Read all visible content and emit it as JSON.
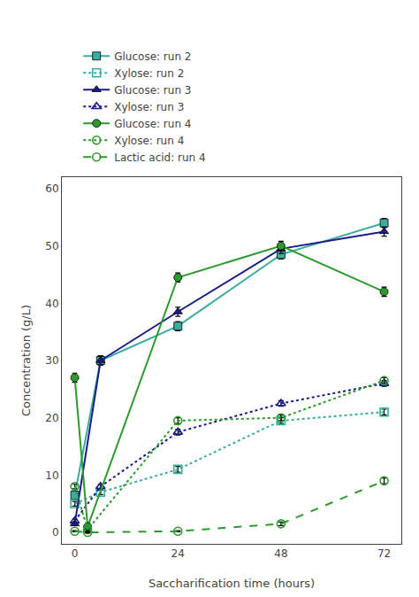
{
  "chart_data": {
    "type": "line",
    "xlabel": "Saccharification time (hours)",
    "ylabel": "Concentration (g/L)",
    "xlim": [
      -3,
      76
    ],
    "ylim": [
      -2,
      62
    ],
    "xticks": [
      0,
      24,
      48,
      72
    ],
    "yticks": [
      0,
      10,
      20,
      30,
      40,
      50,
      60
    ],
    "grid": false,
    "legend": "top",
    "series": [
      {
        "name": "Glucose: run 2",
        "color": "#3aada0",
        "marker": "square",
        "line_style": "solid",
        "x": [
          0,
          6,
          24,
          48,
          72
        ],
        "values": [
          6.5,
          30.0,
          36.0,
          48.5,
          54.0
        ],
        "error": [
          0.5,
          0.8,
          0.8,
          0.8,
          0.8
        ]
      },
      {
        "name": "Xylose: run 2",
        "color": "#3aada0",
        "marker": "square-open",
        "line_style": "dot",
        "x": [
          0,
          6,
          24,
          48,
          72
        ],
        "values": [
          5.0,
          7.0,
          11.0,
          19.5,
          21.0
        ],
        "error": [
          0.4,
          0.4,
          0.5,
          0.5,
          0.5
        ]
      },
      {
        "name": "Glucose: run 3",
        "color": "#1a1a8a",
        "marker": "triangle-up",
        "line_style": "solid",
        "x": [
          0,
          6,
          24,
          48,
          72
        ],
        "values": [
          1.5,
          30.0,
          38.5,
          49.5,
          52.5
        ],
        "error": [
          0.3,
          0.8,
          0.8,
          0.8,
          0.8
        ]
      },
      {
        "name": "Xylose: run 3",
        "color": "#1a1a8a",
        "marker": "triangle-up-open",
        "line_style": "dot",
        "x": [
          0,
          6,
          24,
          48,
          72
        ],
        "values": [
          2.0,
          8.0,
          17.5,
          22.5,
          26.0
        ],
        "error": [
          0.3,
          0.4,
          0.5,
          0.5,
          0.5
        ]
      },
      {
        "name": "Glucose: run 4",
        "color": "#2d9a2d",
        "marker": "circle",
        "line_style": "solid",
        "x": [
          0,
          3,
          24,
          48,
          72
        ],
        "values": [
          27.0,
          1.0,
          44.5,
          50.0,
          42.0
        ],
        "error": [
          0.8,
          0.3,
          0.8,
          0.8,
          0.8
        ]
      },
      {
        "name": "Xylose: run 4",
        "color": "#2d9a2d",
        "marker": "circle-open",
        "line_style": "dot",
        "x": [
          0,
          3,
          24,
          48,
          72
        ],
        "values": [
          8.0,
          0.5,
          19.5,
          20.0,
          26.5
        ],
        "error": [
          0.4,
          0.2,
          0.5,
          0.5,
          0.5
        ]
      },
      {
        "name": "Lactic acid: run 4",
        "color": "#2d9a2d",
        "marker": "circle-open",
        "line_style": "dash",
        "x": [
          0,
          3,
          24,
          48,
          72
        ],
        "values": [
          0.2,
          0.0,
          0.2,
          1.5,
          9.0
        ],
        "error": [
          0.1,
          0.1,
          0.1,
          0.3,
          0.5
        ]
      }
    ]
  }
}
